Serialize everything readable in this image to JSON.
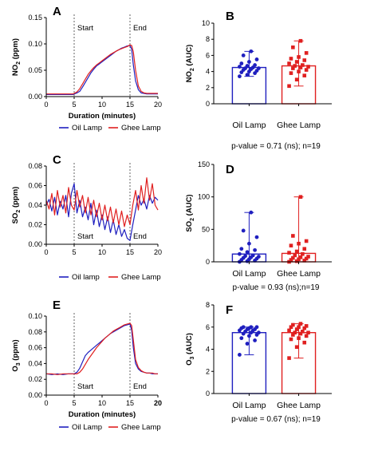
{
  "chart_data": [
    {
      "panel": "A",
      "type": "line",
      "xlabel": "Duration (minutes)",
      "ylabel": "NO2 (ppm)",
      "ylabel_main": "NO",
      "ylabel_sub": "2",
      "ylabel_tail": " (ppm)",
      "xlim": [
        0,
        20
      ],
      "ylim": [
        0,
        0.15
      ],
      "xticks": [
        "0",
        "5",
        "10",
        "15",
        "20"
      ],
      "yticks": [
        "0.00",
        "0.05",
        "0.10",
        "0.15"
      ],
      "annotations": {
        "start": "Start",
        "end": "End",
        "start_x": 5,
        "end_x": 15
      },
      "legend": [
        "Oil Lamp",
        "Ghee Lamp"
      ],
      "colors": {
        "oil": "#1f1fbf",
        "ghee": "#e02020"
      },
      "series": [
        {
          "name": "Oil Lamp",
          "x": [
            0,
            1,
            2,
            3,
            4,
            4.8,
            5,
            5.5,
            6,
            6.5,
            7,
            7.5,
            8,
            8.5,
            9,
            9.5,
            10,
            10.5,
            11,
            11.5,
            12,
            12.5,
            13,
            13.5,
            14,
            14.5,
            15,
            15.3,
            15.6,
            16,
            16.5,
            17,
            17.5,
            18,
            18.5,
            19,
            19.5,
            20
          ],
          "y": [
            0.004,
            0.004,
            0.004,
            0.004,
            0.004,
            0.004,
            0.005,
            0.007,
            0.01,
            0.018,
            0.027,
            0.036,
            0.045,
            0.052,
            0.058,
            0.062,
            0.066,
            0.07,
            0.074,
            0.078,
            0.082,
            0.086,
            0.089,
            0.092,
            0.094,
            0.096,
            0.097,
            0.09,
            0.06,
            0.03,
            0.013,
            0.007,
            0.006,
            0.005,
            0.005,
            0.005,
            0.005,
            0.005
          ]
        },
        {
          "name": "Ghee Lamp",
          "x": [
            0,
            1,
            2,
            3,
            4,
            4.8,
            5,
            5.5,
            6,
            6.5,
            7,
            7.5,
            8,
            8.5,
            9,
            9.5,
            10,
            10.5,
            11,
            11.5,
            12,
            12.5,
            13,
            13.5,
            14,
            14.5,
            15,
            15.3,
            15.6,
            16,
            16.5,
            17,
            17.5,
            18,
            18.5,
            19,
            19.5,
            20
          ],
          "y": [
            0.005,
            0.005,
            0.005,
            0.005,
            0.005,
            0.005,
            0.006,
            0.009,
            0.015,
            0.024,
            0.033,
            0.042,
            0.049,
            0.055,
            0.06,
            0.064,
            0.068,
            0.072,
            0.076,
            0.08,
            0.083,
            0.086,
            0.089,
            0.091,
            0.093,
            0.095,
            0.098,
            0.097,
            0.085,
            0.05,
            0.02,
            0.01,
            0.007,
            0.006,
            0.006,
            0.006,
            0.006,
            0.006
          ]
        }
      ]
    },
    {
      "panel": "B",
      "type": "bar",
      "ylabel": "NO2 (AUC)",
      "ylabel_main": "NO",
      "ylabel_sub": "2",
      "ylabel_tail": " (AUC)",
      "ylim": [
        0,
        10
      ],
      "yticks": [
        "0",
        "2",
        "4",
        "6",
        "8",
        "10"
      ],
      "categories": [
        "Oil Lamp",
        "Ghee Lamp"
      ],
      "values": [
        4.5,
        4.7
      ],
      "range": [
        [
          3.4,
          6.5
        ],
        [
          2.2,
          7.8
        ]
      ],
      "points": [
        [
          3.4,
          3.6,
          3.8,
          3.9,
          4.0,
          4.1,
          4.2,
          4.3,
          4.4,
          4.4,
          4.5,
          4.6,
          4.7,
          4.8,
          5.0,
          5.2,
          5.5,
          6.0,
          6.5
        ],
        [
          2.2,
          3.0,
          3.5,
          3.8,
          4.0,
          4.2,
          4.4,
          4.5,
          4.6,
          4.7,
          4.8,
          5.0,
          5.2,
          5.4,
          5.6,
          5.8,
          6.3,
          7.0,
          7.8
        ]
      ],
      "pvalue": "p-value = 0.71 (ns); n=19",
      "colors": [
        "#1f1fbf",
        "#e02020"
      ]
    },
    {
      "panel": "C",
      "type": "line",
      "ylabel": "SO2 (ppm)",
      "ylabel_main": "SO",
      "ylabel_sub": "2",
      "ylabel_tail": " (ppm)",
      "xlim": [
        0,
        20
      ],
      "ylim": [
        0,
        0.08
      ],
      "xticks": [
        "0",
        "5",
        "10",
        "15",
        "20"
      ],
      "yticks": [
        "0.00",
        "0.02",
        "0.04",
        "0.06",
        "0.08"
      ],
      "annotations": {
        "start": "Start",
        "end": "End",
        "start_x": 5,
        "end_x": 15
      },
      "legend": [
        "Oil lamp",
        "Ghee Lamp"
      ],
      "colors": {
        "oil": "#1f1fbf",
        "ghee": "#e02020"
      },
      "series": [
        {
          "name": "Oil lamp",
          "x": [
            0,
            0.5,
            1,
            1.5,
            2,
            2.5,
            3,
            3.5,
            4,
            4.5,
            5,
            5.5,
            6,
            6.5,
            7,
            7.5,
            8,
            8.5,
            9,
            9.5,
            10,
            10.5,
            11,
            11.5,
            12,
            12.5,
            13,
            13.5,
            14,
            14.5,
            15,
            15.5,
            16,
            16.5,
            17,
            17.5,
            18,
            18.5,
            19,
            19.5,
            20
          ],
          "y": [
            0.04,
            0.046,
            0.034,
            0.048,
            0.03,
            0.044,
            0.036,
            0.05,
            0.028,
            0.052,
            0.062,
            0.032,
            0.045,
            0.028,
            0.038,
            0.025,
            0.042,
            0.02,
            0.035,
            0.018,
            0.03,
            0.015,
            0.028,
            0.012,
            0.025,
            0.01,
            0.02,
            0.008,
            0.015,
            0.006,
            0.004,
            0.02,
            0.035,
            0.05,
            0.04,
            0.046,
            0.036,
            0.05,
            0.042,
            0.048,
            0.045
          ]
        },
        {
          "name": "Ghee Lamp",
          "x": [
            0,
            0.5,
            1,
            1.5,
            2,
            2.5,
            3,
            3.5,
            4,
            4.5,
            5,
            5.5,
            6,
            6.5,
            7,
            7.5,
            8,
            8.5,
            9,
            9.5,
            10,
            10.5,
            11,
            11.5,
            12,
            12.5,
            13,
            13.5,
            14,
            14.5,
            15,
            15.5,
            16,
            16.5,
            17,
            17.5,
            18,
            18.5,
            19,
            19.5,
            20
          ],
          "y": [
            0.045,
            0.036,
            0.052,
            0.03,
            0.055,
            0.038,
            0.05,
            0.032,
            0.058,
            0.04,
            0.035,
            0.055,
            0.038,
            0.05,
            0.032,
            0.048,
            0.03,
            0.045,
            0.028,
            0.042,
            0.025,
            0.04,
            0.024,
            0.038,
            0.022,
            0.036,
            0.02,
            0.034,
            0.018,
            0.03,
            0.02,
            0.04,
            0.055,
            0.035,
            0.06,
            0.042,
            0.068,
            0.045,
            0.062,
            0.04,
            0.035
          ]
        }
      ]
    },
    {
      "panel": "D",
      "type": "bar",
      "ylabel": "SO2 (AUC)",
      "ylabel_main": "SO",
      "ylabel_sub": "2",
      "ylabel_tail": " (AUC)",
      "ylim": [
        0,
        150
      ],
      "yticks": [
        "0",
        "50",
        "100",
        "150"
      ],
      "categories": [
        "Oil Lamp",
        "Ghee Lamp"
      ],
      "values": [
        12,
        13
      ],
      "range": [
        [
          0,
          76
        ],
        [
          0,
          100
        ]
      ],
      "points": [
        [
          0,
          1,
          2,
          3,
          4,
          5,
          6,
          7,
          8,
          9,
          10,
          12,
          15,
          18,
          20,
          28,
          38,
          48,
          76
        ],
        [
          0,
          1,
          2,
          3,
          4,
          5,
          6,
          7,
          8,
          10,
          12,
          14,
          16,
          20,
          25,
          28,
          32,
          40,
          100
        ]
      ],
      "pvalue": "p-value = 0.93 (ns);n=19",
      "colors": [
        "#1f1fbf",
        "#e02020"
      ]
    },
    {
      "panel": "E",
      "type": "line",
      "xlabel": "Duration (minutes)",
      "ylabel": "O3 (ppm)",
      "ylabel_main": "O",
      "ylabel_sub": "3",
      "ylabel_tail": " (ppm)",
      "xlim": [
        0,
        20
      ],
      "ylim": [
        0,
        0.1
      ],
      "xticks": [
        "0",
        "5",
        "10",
        "15",
        "20"
      ],
      "yticks": [
        "0.00",
        "0.02",
        "0.04",
        "0.06",
        "0.08",
        "0.10"
      ],
      "annotations": {
        "start": "Start",
        "end": "End",
        "start_x": 5,
        "end_x": 15
      },
      "legend": [
        "Oil Lamp",
        "Ghee Lamp"
      ],
      "colors": {
        "oil": "#1f1fbf",
        "ghee": "#e02020"
      },
      "series": [
        {
          "name": "Oil Lamp",
          "x": [
            0,
            1,
            2,
            3,
            4,
            5,
            5.5,
            6,
            6.5,
            7,
            7.5,
            8,
            8.5,
            9,
            9.5,
            10,
            10.5,
            11,
            11.5,
            12,
            12.5,
            13,
            13.5,
            14,
            14.5,
            15,
            15.3,
            15.6,
            16,
            16.5,
            17,
            17.5,
            18,
            18.5,
            19,
            19.5,
            20
          ],
          "y": [
            0.027,
            0.026,
            0.027,
            0.026,
            0.027,
            0.027,
            0.029,
            0.034,
            0.042,
            0.05,
            0.054,
            0.057,
            0.06,
            0.063,
            0.066,
            0.069,
            0.072,
            0.075,
            0.078,
            0.08,
            0.082,
            0.084,
            0.086,
            0.088,
            0.089,
            0.09,
            0.082,
            0.06,
            0.04,
            0.033,
            0.03,
            0.029,
            0.028,
            0.028,
            0.027,
            0.027,
            0.027
          ]
        },
        {
          "name": "Ghee Lamp",
          "x": [
            0,
            1,
            2,
            3,
            4,
            5,
            5.5,
            6,
            6.5,
            7,
            7.5,
            8,
            8.5,
            9,
            9.5,
            10,
            10.5,
            11,
            11.5,
            12,
            12.5,
            13,
            13.5,
            14,
            14.5,
            15,
            15.3,
            15.6,
            16,
            16.5,
            17,
            17.5,
            18,
            18.5,
            19,
            19.5,
            20
          ],
          "y": [
            0.027,
            0.027,
            0.026,
            0.027,
            0.027,
            0.027,
            0.027,
            0.029,
            0.033,
            0.039,
            0.045,
            0.05,
            0.055,
            0.06,
            0.064,
            0.068,
            0.072,
            0.075,
            0.078,
            0.081,
            0.083,
            0.085,
            0.087,
            0.089,
            0.09,
            0.091,
            0.088,
            0.07,
            0.045,
            0.035,
            0.031,
            0.029,
            0.028,
            0.028,
            0.028,
            0.027,
            0.027
          ]
        }
      ]
    },
    {
      "panel": "F",
      "type": "bar",
      "ylabel": "O3 (AUC)",
      "ylabel_main": "O",
      "ylabel_sub": "3",
      "ylabel_tail": " (AUC)",
      "ylim": [
        0,
        8
      ],
      "yticks": [
        "0",
        "2",
        "4",
        "6",
        "8"
      ],
      "categories": [
        "Oil Lamp",
        "Ghee Lamp"
      ],
      "values": [
        5.5,
        5.5
      ],
      "range": [
        [
          3.5,
          6.0
        ],
        [
          3.2,
          6.3
        ]
      ],
      "points": [
        [
          3.5,
          4.5,
          4.8,
          5.0,
          5.2,
          5.3,
          5.4,
          5.5,
          5.5,
          5.6,
          5.7,
          5.7,
          5.8,
          5.8,
          5.9,
          5.9,
          6.0,
          6.0,
          6.0
        ],
        [
          3.2,
          4.2,
          4.6,
          4.9,
          5.0,
          5.2,
          5.3,
          5.4,
          5.5,
          5.5,
          5.6,
          5.7,
          5.8,
          5.9,
          6.0,
          6.0,
          6.1,
          6.2,
          6.3
        ]
      ],
      "pvalue": "p-value = 0.67 (ns); n=19",
      "colors": [
        "#1f1fbf",
        "#e02020"
      ]
    }
  ]
}
